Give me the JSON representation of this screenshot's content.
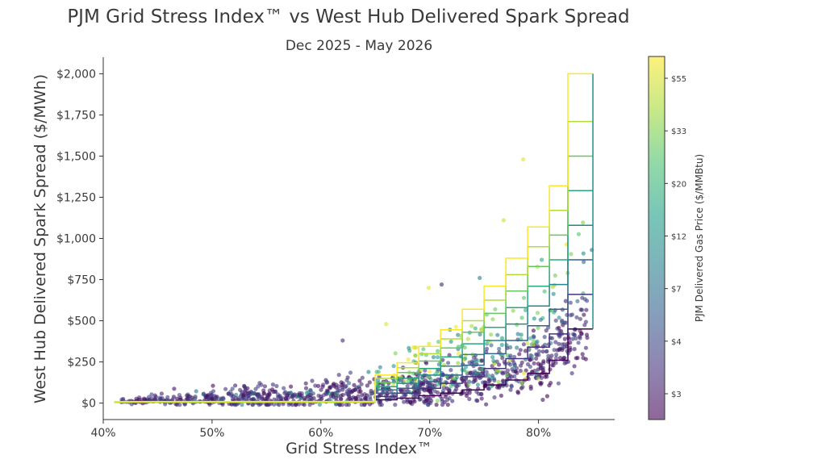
{
  "chart_data": {
    "type": "scatter",
    "title": "PJM Grid Stress Index™ vs West Hub Delivered Spark Spread",
    "subtitle": "Dec 2025 - May 2026",
    "xlabel": "Grid Stress Index™",
    "ylabel": "West Hub Delivered Spark Spread ($/MWh)",
    "xlim": [
      40,
      87
    ],
    "ylim": [
      -100,
      2100
    ],
    "x_ticks": [
      40,
      50,
      60,
      70,
      80
    ],
    "x_tick_labels": [
      "40%",
      "50%",
      "60%",
      "70%",
      "80%"
    ],
    "y_ticks": [
      0,
      250,
      500,
      750,
      1000,
      1250,
      1500,
      1750,
      2000
    ],
    "y_tick_labels": [
      "$0",
      "$250",
      "$500",
      "$750",
      "$1,000",
      "$1,250",
      "$1,500",
      "$1,750",
      "$2,000"
    ],
    "grid": false,
    "colorbar": {
      "label": "PJM Delivered Gas Price ($/MMBtu)",
      "colormap": "viridis",
      "ticks": [
        "$3",
        "$4",
        "$7",
        "$12",
        "$20",
        "$33",
        "$55"
      ]
    },
    "step_curves": {
      "x_breaks": [
        41,
        65,
        67,
        69,
        71,
        73,
        75,
        77,
        79,
        81,
        82.7,
        85
      ],
      "levels": [
        {
          "color_pos": 0.0,
          "y": [
            5,
            20,
            30,
            45,
            60,
            80,
            110,
            140,
            180,
            260,
            450
          ]
        },
        {
          "color_pos": 0.15,
          "y": [
            5,
            40,
            60,
            90,
            120,
            160,
            210,
            270,
            340,
            420,
            660
          ]
        },
        {
          "color_pos": 0.3,
          "y": [
            5,
            60,
            90,
            130,
            170,
            230,
            300,
            380,
            470,
            570,
            870
          ]
        },
        {
          "color_pos": 0.45,
          "y": [
            5,
            80,
            120,
            170,
            225,
            295,
            380,
            480,
            590,
            720,
            1080
          ]
        },
        {
          "color_pos": 0.6,
          "y": [
            5,
            100,
            150,
            210,
            280,
            360,
            460,
            580,
            710,
            870,
            1290
          ]
        },
        {
          "color_pos": 0.75,
          "y": [
            5,
            125,
            185,
            255,
            335,
            430,
            545,
            680,
            830,
            1020,
            1500
          ]
        },
        {
          "color_pos": 0.88,
          "y": [
            5,
            150,
            215,
            300,
            390,
            500,
            625,
            780,
            950,
            1170,
            1710
          ]
        },
        {
          "color_pos": 1.0,
          "y": [
            10,
            170,
            245,
            345,
            445,
            570,
            710,
            880,
            1070,
            1320,
            2000
          ]
        }
      ]
    },
    "scatter_outliers": [
      {
        "x": 78.6,
        "y": 1480,
        "c": 0.95
      },
      {
        "x": 76.8,
        "y": 1110,
        "c": 0.92
      },
      {
        "x": 84.9,
        "y": 930,
        "c": 0.35
      },
      {
        "x": 69.9,
        "y": 700,
        "c": 0.95
      },
      {
        "x": 71.1,
        "y": 720,
        "c": 0.1
      },
      {
        "x": 74.6,
        "y": 760,
        "c": 0.4
      },
      {
        "x": 62.0,
        "y": 380,
        "c": 0.1
      },
      {
        "x": 66.0,
        "y": 480,
        "c": 0.95
      },
      {
        "x": 82.5,
        "y": 620,
        "c": 0.1
      },
      {
        "x": 80.3,
        "y": 870,
        "c": 0.6
      }
    ]
  }
}
